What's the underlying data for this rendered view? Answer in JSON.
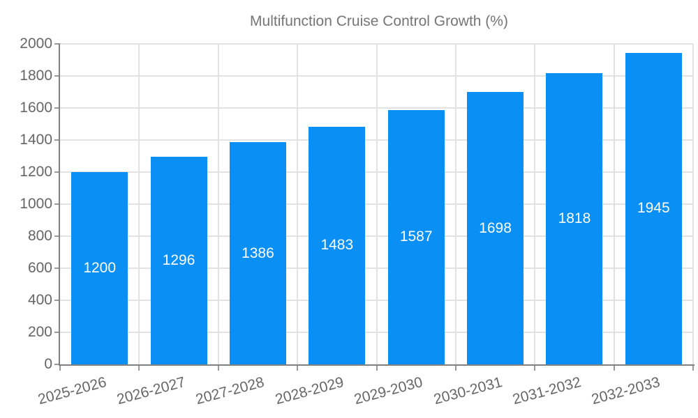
{
  "legend": {
    "label": "Multifunction Cruise Control Growth (%)"
  },
  "chart_data": {
    "type": "bar",
    "title": "Multifunction Cruise Control Growth (%)",
    "categories": [
      "2025-2026",
      "2026-2027",
      "2027-2028",
      "2028-2029",
      "2029-2030",
      "2030-2031",
      "2031-2032",
      "2032-2033"
    ],
    "values": [
      1200,
      1296,
      1386,
      1483,
      1587,
      1698,
      1818,
      1945
    ],
    "value_labels": [
      "1200",
      "1296",
      "1386",
      "1483",
      "1587",
      "1698",
      "1818",
      "1945"
    ],
    "xlabel": "",
    "ylabel": "",
    "ylim": [
      0,
      2000
    ],
    "yticks": [
      0,
      200,
      400,
      600,
      800,
      1000,
      1200,
      1400,
      1600,
      1800,
      2000
    ],
    "grid": true,
    "legend_position": "top",
    "xtick_rotation_deg": -15
  },
  "colors": {
    "bar": "#0a8ff4",
    "value_text": "#ffffff",
    "axis_line": "#808080",
    "tick_mark": "#999999",
    "grid_line": "#e2e2e2",
    "tick_text": "#666666",
    "legend_text": "#757575"
  }
}
